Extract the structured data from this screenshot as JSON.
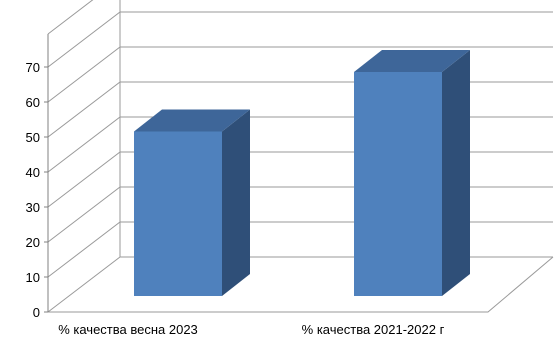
{
  "chart_data": {
    "type": "bar",
    "style": "3d-column",
    "categories": [
      "% качества весна 2023",
      "% качества  2021-2022 г"
    ],
    "series": [
      {
        "values": [
          47,
          64
        ]
      }
    ],
    "ylim": [
      0,
      70
    ],
    "yticks": [
      "0",
      "10",
      "20",
      "30",
      "40",
      "50",
      "60",
      "70"
    ],
    "grid": true,
    "legend": "none",
    "colors": {
      "bar_front": "#4F81BD",
      "bar_side": "#2F4F78",
      "bar_top": "#3E6699",
      "grid": "#9a9a9a",
      "axis": "#808080"
    }
  }
}
